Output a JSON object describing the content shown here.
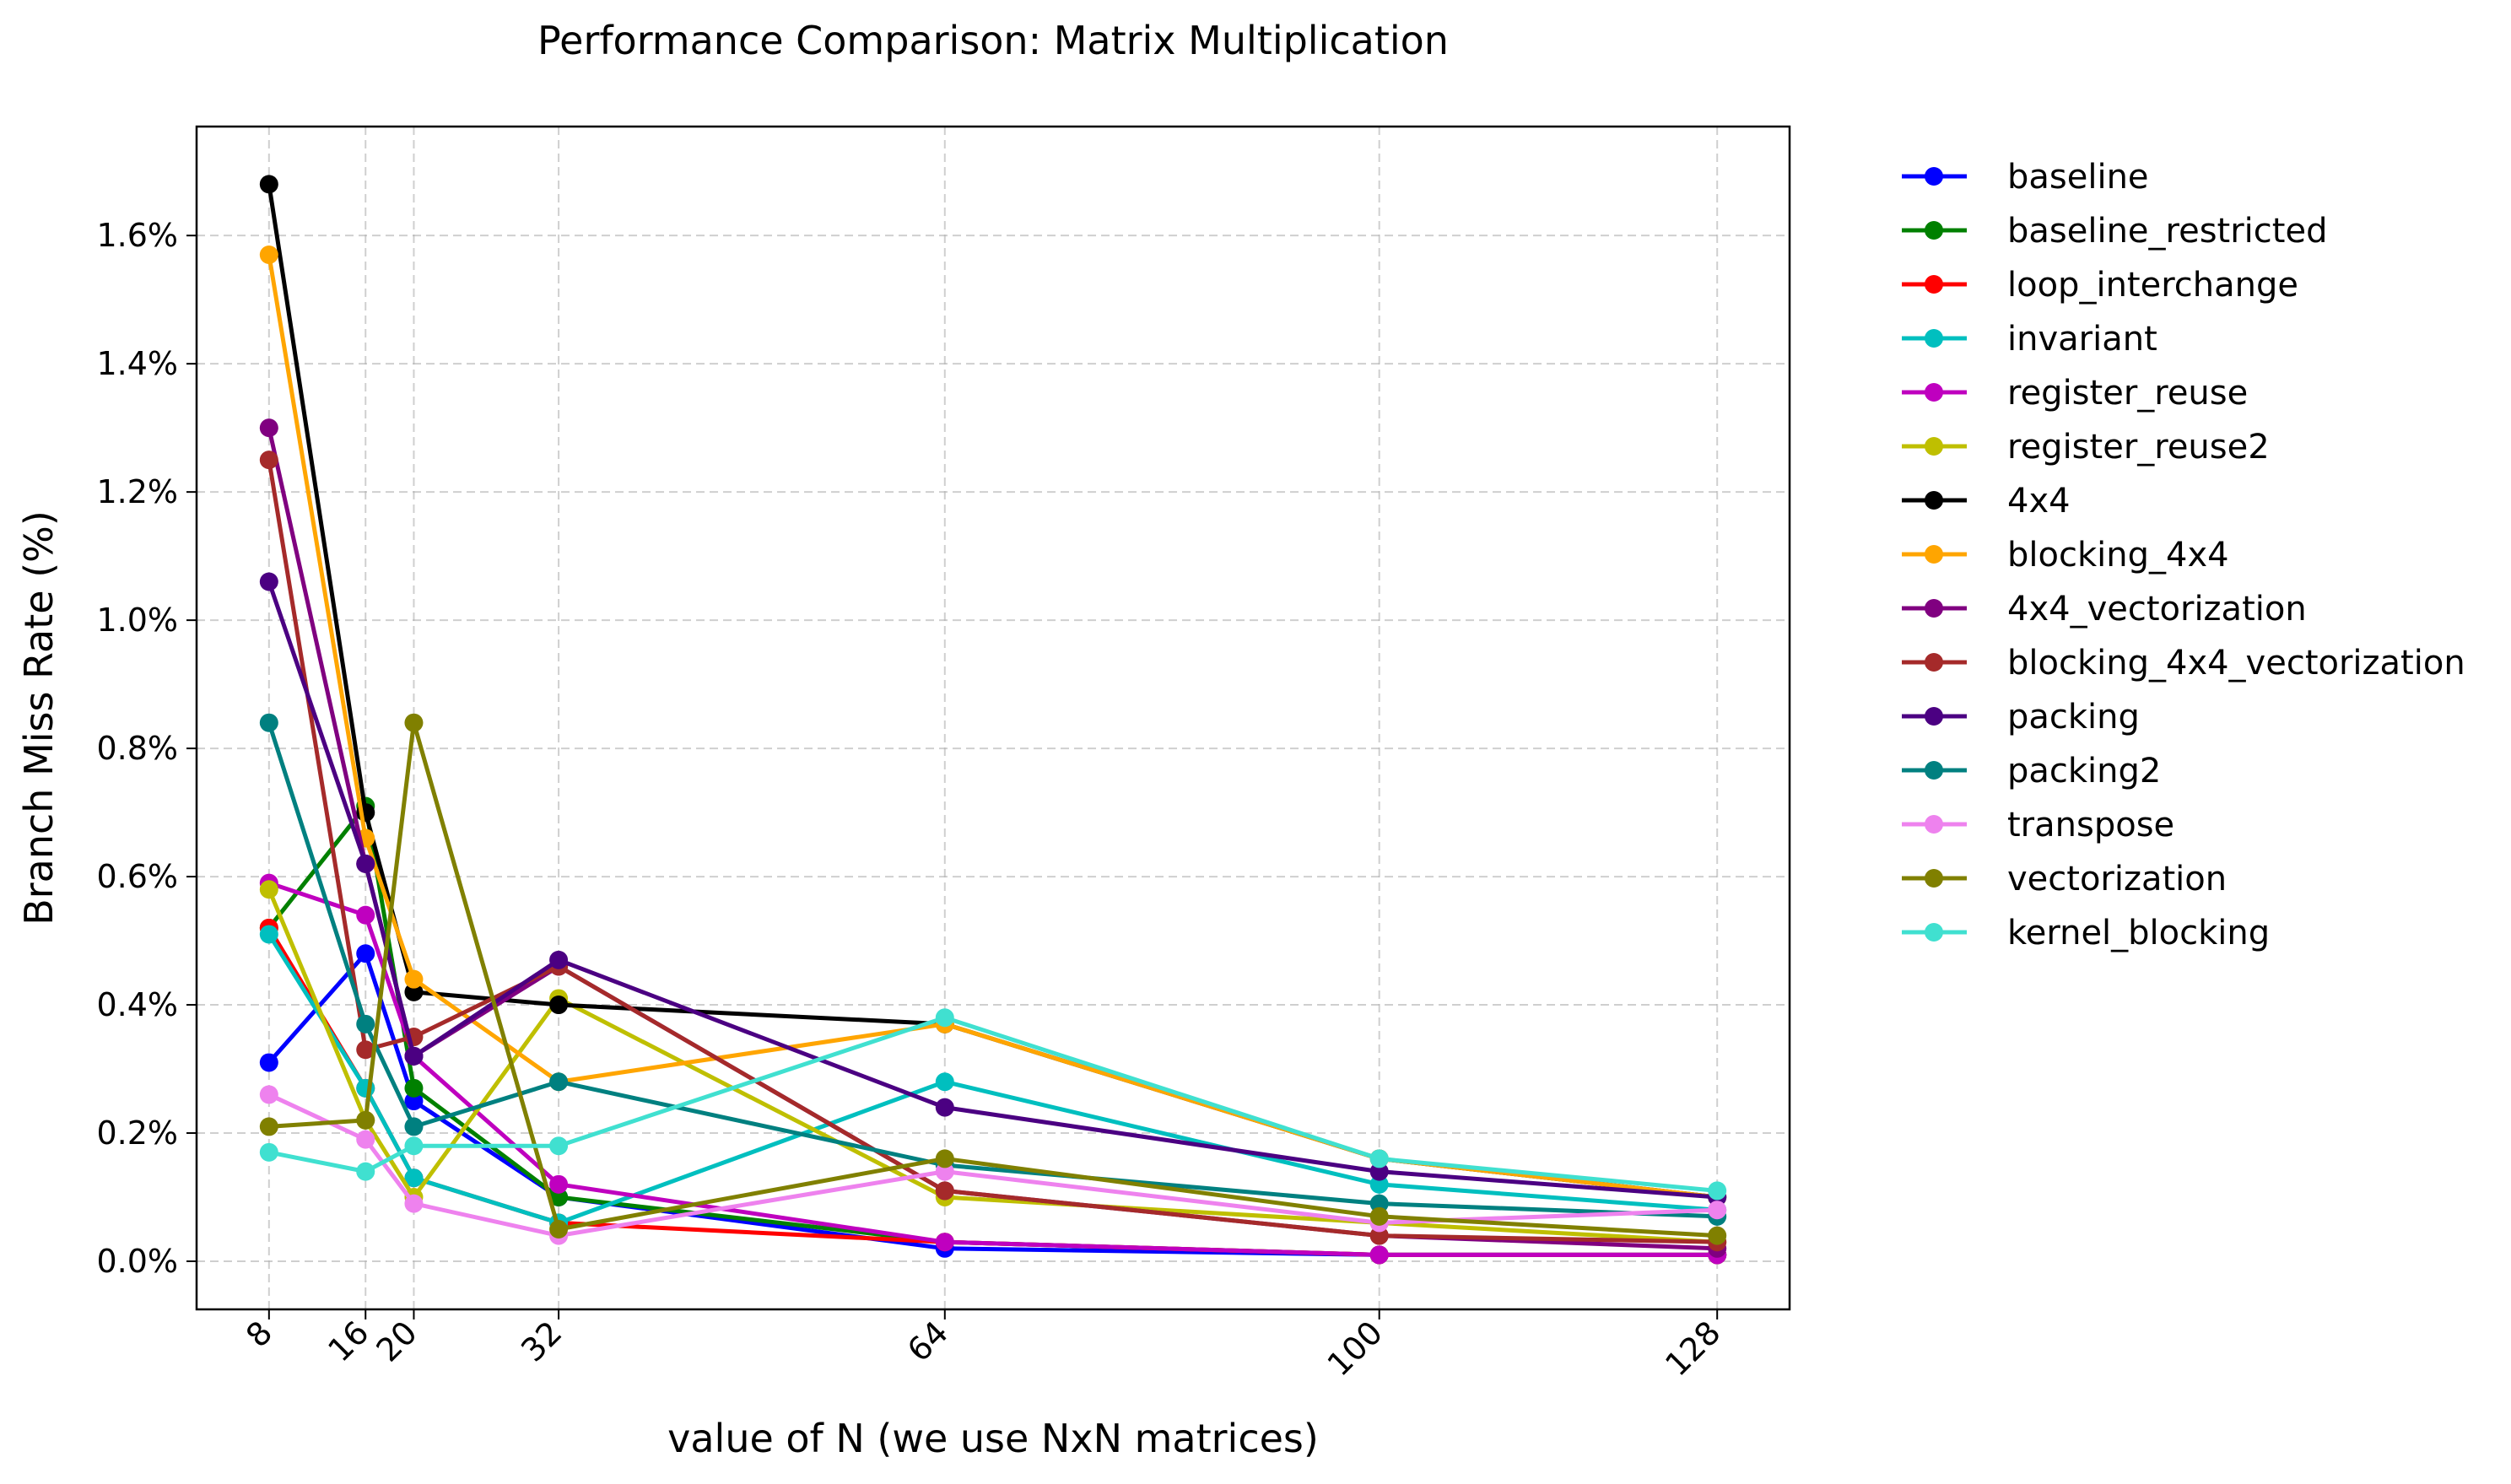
{
  "chart_data": {
    "type": "line",
    "title": "Performance Comparison: Matrix Multiplication",
    "xlabel": "value of N (we use NxN matrices)",
    "ylabel": "Branch Miss Rate (%)",
    "x": [
      8,
      16,
      20,
      32,
      64,
      100,
      128
    ],
    "x_tick_labels": [
      "8",
      "16",
      "20",
      "32",
      "64",
      "100",
      "128"
    ],
    "xlim": [
      2,
      134
    ],
    "ylim": [
      -0.075,
      1.77
    ],
    "y_ticks": [
      0.0,
      0.2,
      0.4,
      0.6,
      0.8,
      1.0,
      1.2,
      1.4,
      1.6
    ],
    "y_tick_labels": [
      "0.0%",
      "0.2%",
      "0.4%",
      "0.6%",
      "0.8%",
      "1.0%",
      "1.2%",
      "1.4%",
      "1.6%"
    ],
    "grid": true,
    "legend_position": "outside-right",
    "series": [
      {
        "name": "baseline",
        "color": "#0000ff",
        "values": [
          0.31,
          0.48,
          0.25,
          0.1,
          0.02,
          0.01,
          0.01
        ]
      },
      {
        "name": "baseline_restricted",
        "color": "#008000",
        "values": [
          0.52,
          0.71,
          0.27,
          0.1,
          0.03,
          0.01,
          0.01
        ]
      },
      {
        "name": "loop_interchange",
        "color": "#ff0000",
        "values": [
          0.52,
          0.27,
          0.13,
          0.06,
          0.03,
          0.01,
          0.01
        ]
      },
      {
        "name": "invariant",
        "color": "#00bfbf",
        "values": [
          0.51,
          0.27,
          0.13,
          0.06,
          0.28,
          0.12,
          0.08
        ]
      },
      {
        "name": "register_reuse",
        "color": "#bf00bf",
        "values": [
          0.59,
          0.54,
          0.32,
          0.12,
          0.03,
          0.01,
          0.01
        ]
      },
      {
        "name": "register_reuse2",
        "color": "#bfbf00",
        "values": [
          0.58,
          0.22,
          0.1,
          0.41,
          0.1,
          0.06,
          0.03
        ]
      },
      {
        "name": "4x4",
        "color": "#000000",
        "values": [
          1.68,
          0.7,
          0.42,
          0.4,
          0.37,
          0.16,
          0.1
        ]
      },
      {
        "name": "blocking_4x4",
        "color": "#ffa500",
        "values": [
          1.57,
          0.66,
          0.44,
          0.28,
          0.37,
          0.16,
          0.1
        ]
      },
      {
        "name": "4x4_vectorization",
        "color": "#800080",
        "values": [
          1.3,
          0.62,
          0.32,
          0.46,
          0.11,
          0.04,
          0.02
        ]
      },
      {
        "name": "blocking_4x4_vectorization",
        "color": "#a52a2a",
        "values": [
          1.25,
          0.33,
          0.35,
          0.46,
          0.11,
          0.04,
          0.03
        ]
      },
      {
        "name": "packing",
        "color": "#4b0082",
        "values": [
          1.06,
          0.62,
          0.32,
          0.47,
          0.24,
          0.14,
          0.1
        ]
      },
      {
        "name": "packing2",
        "color": "#008080",
        "values": [
          0.84,
          0.37,
          0.21,
          0.28,
          0.15,
          0.09,
          0.07
        ]
      },
      {
        "name": "transpose",
        "color": "#ee82ee",
        "values": [
          0.26,
          0.19,
          0.09,
          0.04,
          0.14,
          0.06,
          0.08
        ]
      },
      {
        "name": "vectorization",
        "color": "#808000",
        "values": [
          0.21,
          0.22,
          0.84,
          0.05,
          0.16,
          0.07,
          0.04
        ]
      },
      {
        "name": "kernel_blocking",
        "color": "#40e0d0",
        "values": [
          0.17,
          0.14,
          0.18,
          0.18,
          0.38,
          0.16,
          0.11
        ]
      }
    ]
  }
}
